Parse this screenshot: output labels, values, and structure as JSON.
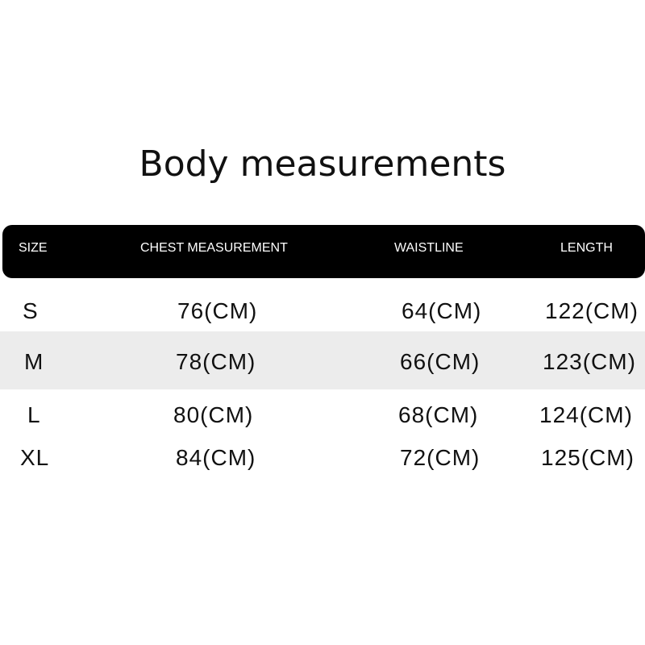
{
  "title": "Body measurements",
  "headers": [
    "SIZE",
    "CHEST MEASUREMENT",
    "WAISTLINE",
    "LENGTH"
  ],
  "rows": [
    [
      "S",
      "76(CM)",
      "64(CM)",
      "122(CM)"
    ],
    [
      "M",
      "78(CM)",
      "66(CM)",
      "123(CM)"
    ],
    [
      "L",
      "80(CM)",
      "68(CM)",
      "124(CM)"
    ],
    [
      "XL",
      "84(CM)",
      "72(CM)",
      "125(CM)"
    ]
  ]
}
